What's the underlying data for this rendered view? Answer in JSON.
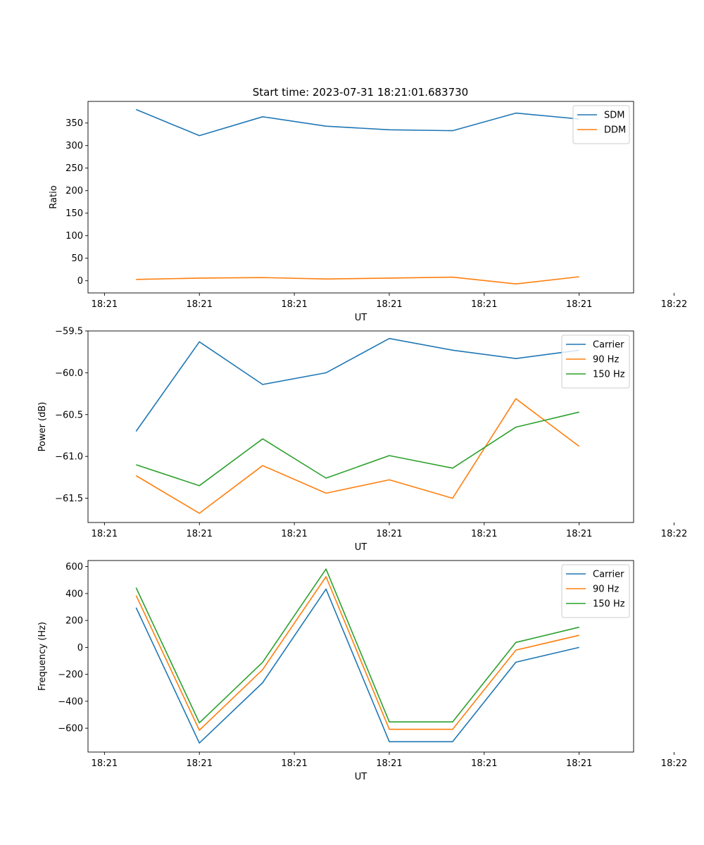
{
  "figure": {
    "title": "Start time: 2023-07-31 18:21:01.683730"
  },
  "chart_data": [
    {
      "type": "line",
      "id": "ratio",
      "title": "Start time: 2023-07-31 18:21:01.683730",
      "xlabel": "UT",
      "ylabel": "Ratio",
      "x": [
        1,
        2,
        3,
        4,
        5,
        6,
        7,
        8
      ],
      "xlim": [
        0.24,
        8.86
      ],
      "x_ticks": [
        0.5,
        2.0,
        3.5,
        5.0,
        6.5,
        8.0,
        9.5
      ],
      "x_tick_labels": [
        "18:21",
        "18:21",
        "18:21",
        "18:21",
        "18:21",
        "18:21",
        "18:22"
      ],
      "ylim": [
        -27,
        398
      ],
      "y_ticks": [
        0,
        50,
        100,
        150,
        200,
        250,
        300,
        350
      ],
      "y_tick_labels": [
        "0",
        "50",
        "100",
        "150",
        "200",
        "250",
        "300",
        "350"
      ],
      "legend_position": "top-right",
      "series": [
        {
          "name": "SDM",
          "color": "#1f77b4",
          "values": [
            380,
            322,
            364,
            343,
            335,
            333,
            372,
            359
          ]
        },
        {
          "name": "DDM",
          "color": "#ff7f0e",
          "values": [
            3,
            6,
            7,
            4,
            6,
            8,
            -7,
            9
          ]
        }
      ]
    },
    {
      "type": "line",
      "id": "power",
      "xlabel": "UT",
      "ylabel": "Power (dB)",
      "x": [
        1,
        2,
        3,
        4,
        5,
        6,
        7,
        8
      ],
      "xlim": [
        0.24,
        8.86
      ],
      "x_ticks": [
        0.5,
        2.0,
        3.5,
        5.0,
        6.5,
        8.0,
        9.5
      ],
      "x_tick_labels": [
        "18:21",
        "18:21",
        "18:21",
        "18:21",
        "18:21",
        "18:21",
        "18:22"
      ],
      "ylim": [
        -61.79,
        -59.5
      ],
      "y_ticks": [
        -59.5,
        -60.0,
        -60.5,
        -61.0,
        -61.5
      ],
      "y_tick_labels": [
        "−59.5",
        "−60.0",
        "−60.5",
        "−61.0",
        "−61.5"
      ],
      "legend_position": "top-right",
      "series": [
        {
          "name": "Carrier",
          "color": "#1f77b4",
          "values": [
            -60.7,
            -59.63,
            -60.14,
            -60.0,
            -59.59,
            -59.73,
            -59.83,
            -59.73
          ]
        },
        {
          "name": "90 Hz",
          "color": "#ff7f0e",
          "values": [
            -61.23,
            -61.68,
            -61.11,
            -61.44,
            -61.28,
            -61.5,
            -60.31,
            -60.88
          ]
        },
        {
          "name": "150 Hz",
          "color": "#2ca02c",
          "values": [
            -61.1,
            -61.35,
            -60.79,
            -61.26,
            -60.99,
            -61.14,
            -60.65,
            -60.47
          ]
        }
      ]
    },
    {
      "type": "line",
      "id": "frequency",
      "xlabel": "UT",
      "ylabel": "Frequency (Hz)",
      "x": [
        1,
        2,
        3,
        4,
        5,
        6,
        7,
        8
      ],
      "xlim": [
        0.24,
        8.86
      ],
      "x_ticks": [
        0.5,
        2.0,
        3.5,
        5.0,
        6.5,
        8.0,
        9.5
      ],
      "x_tick_labels": [
        "18:21",
        "18:21",
        "18:21",
        "18:21",
        "18:21",
        "18:21",
        "18:22"
      ],
      "ylim": [
        -777,
        645
      ],
      "y_ticks": [
        600,
        400,
        200,
        0,
        -200,
        -400,
        -600
      ],
      "y_tick_labels": [
        "600",
        "400",
        "200",
        "0",
        "−200",
        "−400",
        "−600"
      ],
      "legend_position": "top-right",
      "series": [
        {
          "name": "Carrier",
          "color": "#1f77b4",
          "values": [
            295,
            -710,
            -262,
            433,
            -700,
            -700,
            -110,
            0
          ]
        },
        {
          "name": "90 Hz",
          "color": "#ff7f0e",
          "values": [
            385,
            -615,
            -165,
            525,
            -608,
            -608,
            -20,
            90
          ]
        },
        {
          "name": "150 Hz",
          "color": "#2ca02c",
          "values": [
            443,
            -560,
            -110,
            582,
            -553,
            -553,
            37,
            150
          ]
        }
      ]
    }
  ]
}
